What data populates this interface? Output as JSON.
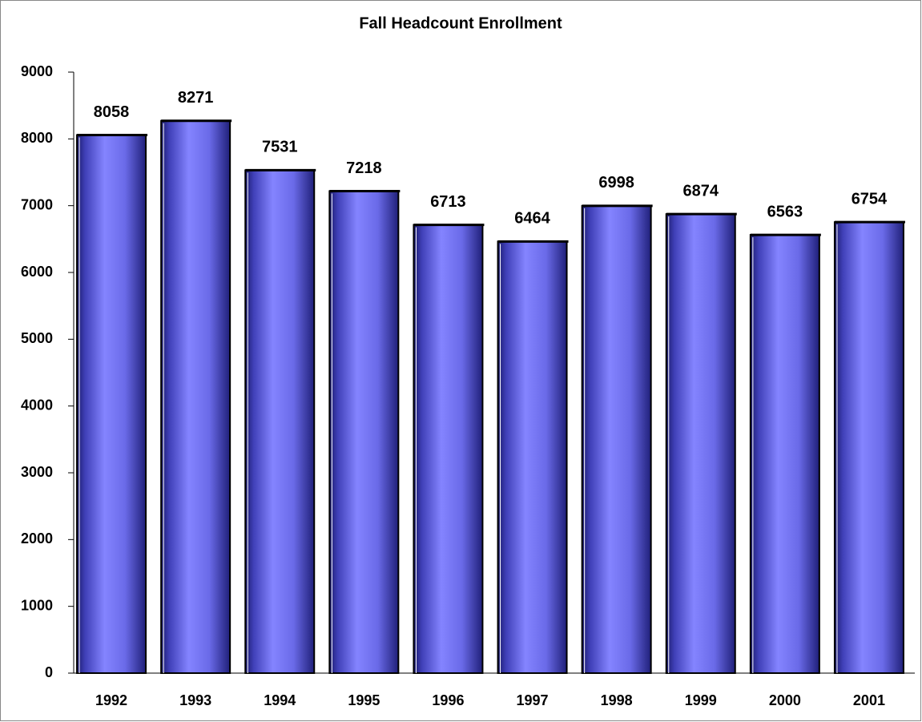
{
  "chart_data": {
    "type": "bar",
    "title": "Fall Headcount Enrollment",
    "categories": [
      "1992",
      "1993",
      "1994",
      "1995",
      "1996",
      "1997",
      "1998",
      "1999",
      "2000",
      "2001"
    ],
    "values": [
      8058,
      8271,
      7531,
      7218,
      6713,
      6464,
      6998,
      6874,
      6563,
      6754
    ],
    "color": "#7f7fff",
    "ylim": [
      0,
      9000
    ],
    "yticks": [
      0,
      1000,
      2000,
      3000,
      4000,
      5000,
      6000,
      7000,
      8000,
      9000
    ],
    "grid": false
  }
}
